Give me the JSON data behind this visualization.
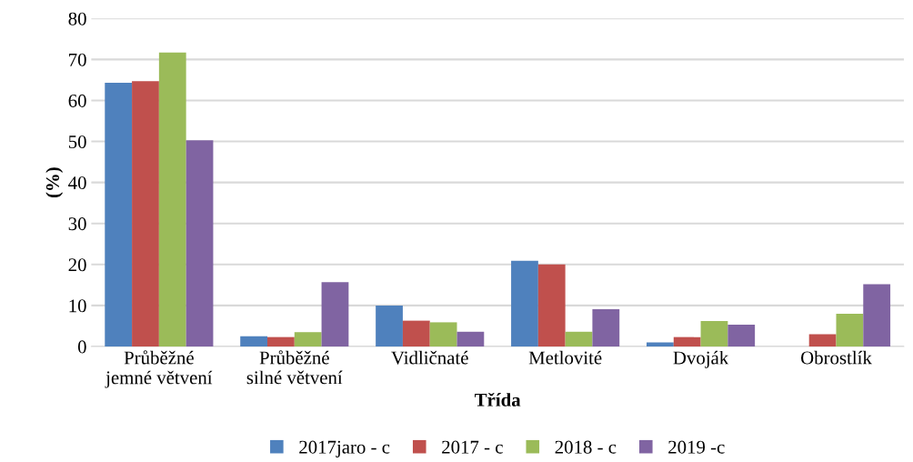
{
  "chart_data": {
    "type": "bar",
    "xlabel": "Třída",
    "ylabel": "(%)",
    "categories": [
      "Průběžné\njemné větvení",
      "Průběžné\nsilné větvení",
      "Vidličnaté",
      "Metlovité",
      "Dvoják",
      "Obrostlík"
    ],
    "series": [
      {
        "name": "2017jaro - c",
        "color": "#4f81bd",
        "values": [
          64.3,
          2.5,
          10.0,
          20.9,
          1.0,
          0
        ]
      },
      {
        "name": "2017 - c",
        "color": "#c0504d",
        "values": [
          64.7,
          2.3,
          6.3,
          20.0,
          2.3,
          3.0
        ]
      },
      {
        "name": "2018 - c",
        "color": "#9bbb59",
        "values": [
          71.7,
          3.5,
          5.9,
          3.6,
          6.2,
          8.0
        ]
      },
      {
        "name": "2019 -c",
        "color": "#8064a2",
        "values": [
          50.3,
          15.7,
          3.6,
          9.1,
          5.3,
          15.2
        ]
      }
    ],
    "ylim": [
      0,
      80
    ],
    "yticks": [
      0,
      10,
      20,
      30,
      40,
      50,
      60,
      70,
      80
    ],
    "grid": "y",
    "legend": "bottom"
  }
}
